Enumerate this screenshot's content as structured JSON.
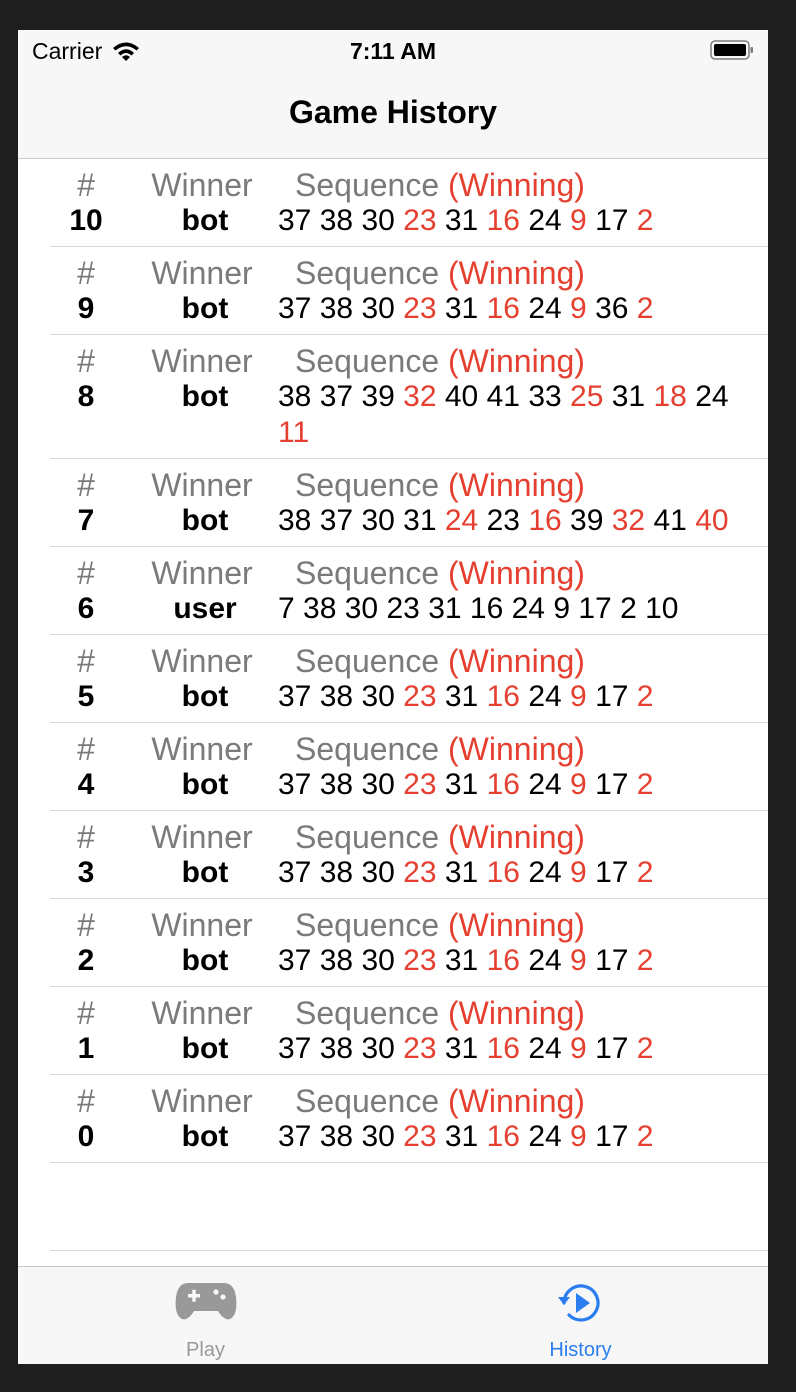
{
  "status_bar": {
    "carrier": "Carrier",
    "time": "7:11 AM"
  },
  "nav": {
    "title": "Game History"
  },
  "headers": {
    "num": "#",
    "winner": "Winner",
    "sequence": "Sequence",
    "winning": "(Winning)"
  },
  "games": [
    {
      "num": "10",
      "winner": "bot",
      "moves": [
        [
          "37",
          0
        ],
        [
          "38",
          0
        ],
        [
          "30",
          0
        ],
        [
          "23",
          1
        ],
        [
          "31",
          0
        ],
        [
          "16",
          1
        ],
        [
          "24",
          0
        ],
        [
          "9",
          1
        ],
        [
          "17",
          0
        ],
        [
          "2",
          1
        ]
      ]
    },
    {
      "num": "9",
      "winner": "bot",
      "moves": [
        [
          "37",
          0
        ],
        [
          "38",
          0
        ],
        [
          "30",
          0
        ],
        [
          "23",
          1
        ],
        [
          "31",
          0
        ],
        [
          "16",
          1
        ],
        [
          "24",
          0
        ],
        [
          "9",
          1
        ],
        [
          "36",
          0
        ],
        [
          "2",
          1
        ]
      ]
    },
    {
      "num": "8",
      "winner": "bot",
      "moves": [
        [
          "38",
          0
        ],
        [
          "37",
          0
        ],
        [
          "39",
          0
        ],
        [
          "32",
          1
        ],
        [
          "40",
          0
        ],
        [
          "41",
          0
        ],
        [
          "33",
          0
        ],
        [
          "25",
          1
        ],
        [
          "31",
          0
        ],
        [
          "18",
          1
        ],
        [
          "24",
          0
        ],
        [
          "11",
          1
        ]
      ]
    },
    {
      "num": "7",
      "winner": "bot",
      "moves": [
        [
          "38",
          0
        ],
        [
          "37",
          0
        ],
        [
          "30",
          0
        ],
        [
          "31",
          0
        ],
        [
          "24",
          1
        ],
        [
          "23",
          0
        ],
        [
          "16",
          1
        ],
        [
          "39",
          0
        ],
        [
          "32",
          1
        ],
        [
          "41",
          0
        ],
        [
          "40",
          1
        ]
      ]
    },
    {
      "num": "6",
      "winner": "user",
      "moves": [
        [
          "7",
          0
        ],
        [
          "38",
          0
        ],
        [
          "30",
          0
        ],
        [
          "23",
          0
        ],
        [
          "31",
          0
        ],
        [
          "16",
          0
        ],
        [
          "24",
          0
        ],
        [
          "9",
          0
        ],
        [
          "17",
          0
        ],
        [
          "2",
          0
        ],
        [
          "10",
          0
        ]
      ]
    },
    {
      "num": "5",
      "winner": "bot",
      "moves": [
        [
          "37",
          0
        ],
        [
          "38",
          0
        ],
        [
          "30",
          0
        ],
        [
          "23",
          1
        ],
        [
          "31",
          0
        ],
        [
          "16",
          1
        ],
        [
          "24",
          0
        ],
        [
          "9",
          1
        ],
        [
          "17",
          0
        ],
        [
          "2",
          1
        ]
      ]
    },
    {
      "num": "4",
      "winner": "bot",
      "moves": [
        [
          "37",
          0
        ],
        [
          "38",
          0
        ],
        [
          "30",
          0
        ],
        [
          "23",
          1
        ],
        [
          "31",
          0
        ],
        [
          "16",
          1
        ],
        [
          "24",
          0
        ],
        [
          "9",
          1
        ],
        [
          "17",
          0
        ],
        [
          "2",
          1
        ]
      ]
    },
    {
      "num": "3",
      "winner": "bot",
      "moves": [
        [
          "37",
          0
        ],
        [
          "38",
          0
        ],
        [
          "30",
          0
        ],
        [
          "23",
          1
        ],
        [
          "31",
          0
        ],
        [
          "16",
          1
        ],
        [
          "24",
          0
        ],
        [
          "9",
          1
        ],
        [
          "17",
          0
        ],
        [
          "2",
          1
        ]
      ]
    },
    {
      "num": "2",
      "winner": "bot",
      "moves": [
        [
          "37",
          0
        ],
        [
          "38",
          0
        ],
        [
          "30",
          0
        ],
        [
          "23",
          1
        ],
        [
          "31",
          0
        ],
        [
          "16",
          1
        ],
        [
          "24",
          0
        ],
        [
          "9",
          1
        ],
        [
          "17",
          0
        ],
        [
          "2",
          1
        ]
      ]
    },
    {
      "num": "1",
      "winner": "bot",
      "moves": [
        [
          "37",
          0
        ],
        [
          "38",
          0
        ],
        [
          "30",
          0
        ],
        [
          "23",
          1
        ],
        [
          "31",
          0
        ],
        [
          "16",
          1
        ],
        [
          "24",
          0
        ],
        [
          "9",
          1
        ],
        [
          "17",
          0
        ],
        [
          "2",
          1
        ]
      ]
    },
    {
      "num": "0",
      "winner": "bot",
      "moves": [
        [
          "37",
          0
        ],
        [
          "38",
          0
        ],
        [
          "30",
          0
        ],
        [
          "23",
          1
        ],
        [
          "31",
          0
        ],
        [
          "16",
          1
        ],
        [
          "24",
          0
        ],
        [
          "9",
          1
        ],
        [
          "17",
          0
        ],
        [
          "2",
          1
        ]
      ]
    }
  ],
  "tabs": [
    {
      "label": "Play",
      "icon": "gamecontroller-icon",
      "selected": false
    },
    {
      "label": "History",
      "icon": "history-replay-icon",
      "selected": true
    }
  ],
  "colors": {
    "winning": "#e53f30",
    "accent": "#2a7ef0",
    "inactive": "#999999"
  }
}
